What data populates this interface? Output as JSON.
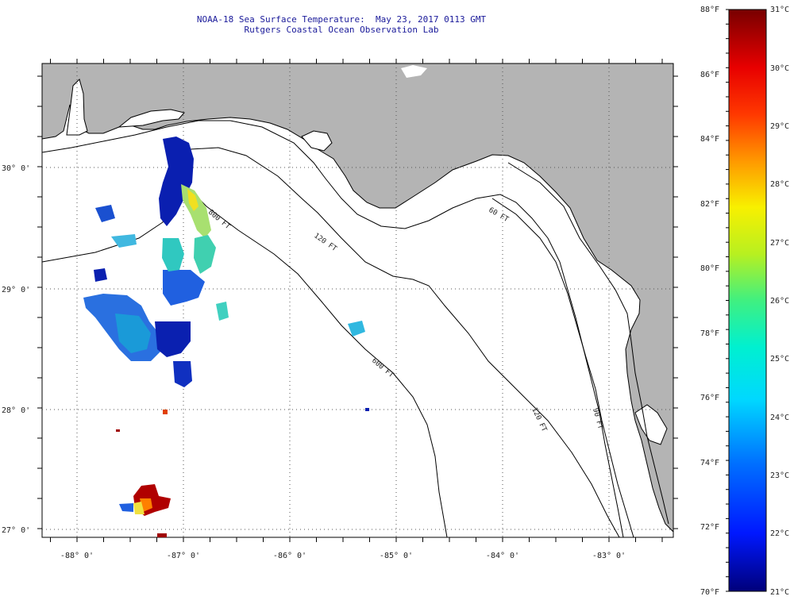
{
  "title": {
    "line1": "NOAA-18 Sea Surface Temperature:  May 23, 2017 0113 GMT",
    "line2": "Rutgers Coastal Ocean Observation Lab"
  },
  "axes": {
    "lon_labels": [
      "-88° 0'",
      "-87° 0'",
      "-86° 0'",
      "-85° 0'",
      "-84° 0'",
      "-83° 0'"
    ],
    "lat_labels": [
      "30° 0'",
      "29° 0'",
      "28° 0'",
      "27° 0'"
    ],
    "lon_range": [
      -88.3,
      -82.1
    ],
    "lat_range": [
      26.95,
      30.85
    ]
  },
  "contours": [
    {
      "label": "800 FT"
    },
    {
      "label": "120 FT"
    },
    {
      "label": "600 FT"
    },
    {
      "label": "120 FT"
    },
    {
      "label": "90 FT"
    },
    {
      "label": "60 FT"
    }
  ],
  "colorbar": {
    "fahrenheit": [
      "88°F",
      "86°F",
      "84°F",
      "82°F",
      "80°F",
      "78°F",
      "76°F",
      "74°F",
      "72°F",
      "70°F"
    ],
    "celsius": [
      "31°C",
      "30°C",
      "29°C",
      "28°C",
      "27°C",
      "26°C",
      "25°C",
      "24°C",
      "23°C",
      "22°C",
      "21°C"
    ],
    "min_c": 21,
    "max_c": 31
  },
  "colors": {
    "land": "#b4b4b4",
    "water": "#ffffff",
    "frame": "#000000",
    "grid": "#555555"
  }
}
